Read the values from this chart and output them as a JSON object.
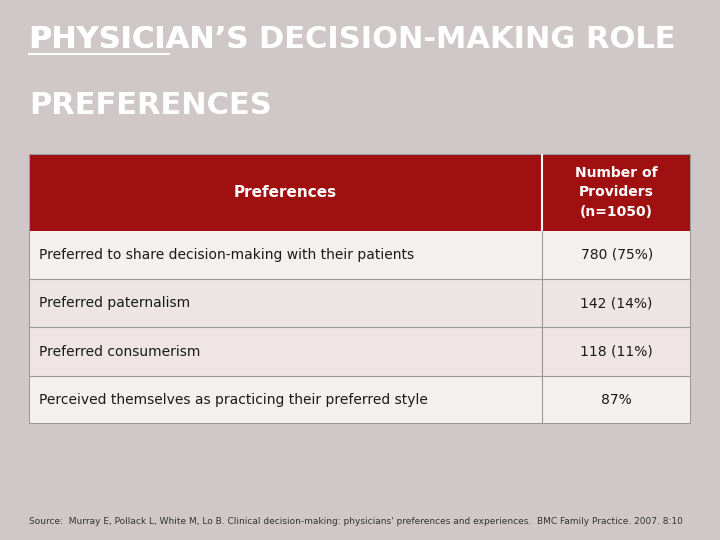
{
  "title_underline_word": "PHYSICIAN’S",
  "title_rest_line1": " DECISION-MAKING ROLE",
  "title_line2": "PREFERENCES",
  "title_bg_color": "#3a3a3a",
  "title_text_color": "#ffffff",
  "table_bg_color": "#e8e0e0",
  "table_border_color": "#999999",
  "header_bg_color": "#a01010",
  "header_text_color": "#ffffff",
  "header_col1": "Preferences",
  "header_col2": "Number of\nProviders\n(n=1050)",
  "rows": [
    {
      "label": "Preferred to share decision-making with their patients",
      "value": "780 (75%)",
      "bg": "#f5f0f0"
    },
    {
      "label": "Preferred paternalism",
      "value": "142 (14%)",
      "bg": "#ede5e5"
    },
    {
      "label": "Preferred consumerism",
      "value": "118 (11%)",
      "bg": "#f0e5e5"
    },
    {
      "label": "Perceived themselves as practicing their preferred style",
      "value": "87%",
      "bg": "#f5f0f0"
    }
  ],
  "source_text": "Source:  Murray E, Pollack L, White M, Lo B. Clinical decision-making: physicians' preferences and experiences.  BMC Family Practice. 2007. 8:10",
  "fig_bg_color": "#d0c8c8"
}
